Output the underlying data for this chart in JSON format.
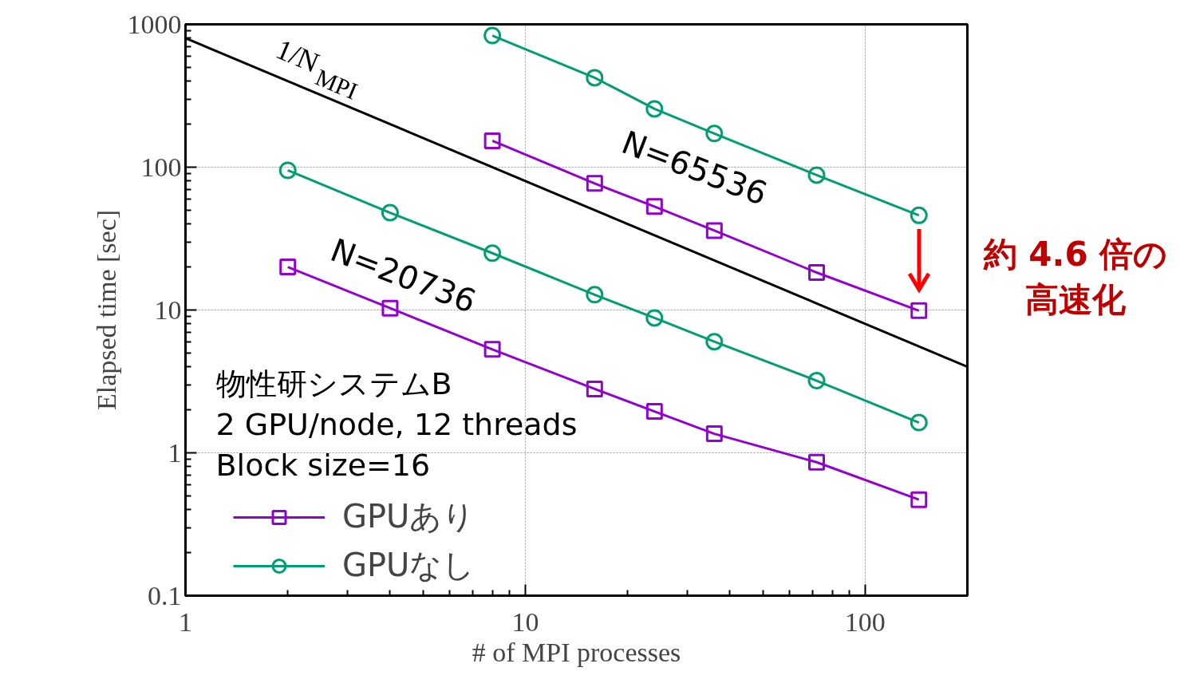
{
  "chart_data": {
    "type": "line",
    "xlabel": "# of MPI processes",
    "ylabel": "Elapsed time [sec]",
    "log": "xy",
    "xlim": [
      1,
      200
    ],
    "ylim": [
      0.1,
      1000
    ],
    "xticks": [
      1,
      10,
      100
    ],
    "yticks": [
      0.1,
      1,
      10,
      100,
      1000
    ],
    "grid": true,
    "legend": "bottom left",
    "line_style": "solid",
    "series": [
      {
        "name": "GPUあり",
        "color": "#9400d3",
        "marker": "square",
        "x": [
          8,
          16,
          24,
          36,
          72,
          144
        ],
        "values": [
          153,
          77,
          53,
          36,
          18.3,
          9.9
        ]
      },
      {
        "name": "GPUなし",
        "color": "#009e73",
        "marker": "circle",
        "x": [
          8,
          16,
          24,
          36,
          72,
          144
        ],
        "values": [
          835,
          423,
          256,
          172,
          88,
          46
        ]
      },
      {
        "color": "#9400d3",
        "marker": "square",
        "x": [
          2,
          4,
          8,
          16,
          24,
          36,
          72,
          144
        ],
        "values": [
          20,
          10.3,
          5.3,
          2.8,
          1.95,
          1.36,
          0.86,
          0.47
        ]
      },
      {
        "color": "#009e73",
        "marker": "circle",
        "x": [
          2,
          4,
          8,
          16,
          24,
          36,
          72,
          144
        ],
        "values": [
          95,
          48,
          25,
          12.8,
          8.8,
          6.0,
          3.2,
          1.63
        ]
      },
      {
        "name": "1/N$_{MPI}$",
        "color": "#000000",
        "marker": "none",
        "x": [
          1,
          200
        ],
        "values": [
          800,
          4
        ]
      }
    ],
    "annotations": [
      "N=65536",
      "N=20736",
      "物性研システムB",
      "2 GPU/node, 12 threads",
      "Block size=16",
      "約 4.6 倍の",
      "高速化"
    ]
  }
}
